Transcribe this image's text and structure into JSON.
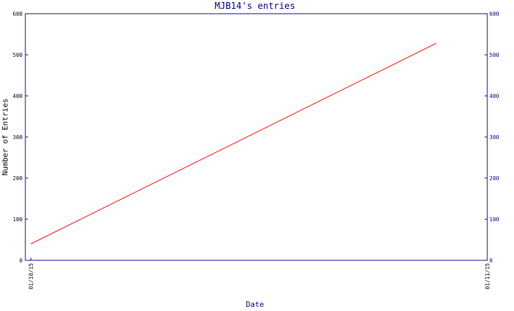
{
  "chart_data": {
    "type": "line",
    "title": "MJB14's entries",
    "xlabel": "Date",
    "ylabel": "Number of Entries",
    "x_ticks": [
      "01/10/15",
      "01/11/15"
    ],
    "x_range": [
      "01/10/15",
      "01/11/15"
    ],
    "ylim": [
      0,
      600
    ],
    "y_ticks": [
      "0",
      "100",
      "200",
      "300",
      "400",
      "500",
      "600"
    ],
    "y_axis_right": true,
    "grid": false,
    "series": [
      {
        "x": [
          "01/10/15",
          "01/11/15 (approx. 0.88 of range)"
        ],
        "x_fraction": [
          0.0,
          0.888
        ],
        "values": [
          40,
          528
        ],
        "color": "#ff0000"
      }
    ]
  },
  "colors": {
    "axis": "#000080",
    "title": "#000080",
    "line": "#ff0000",
    "background": "#ffffff"
  }
}
